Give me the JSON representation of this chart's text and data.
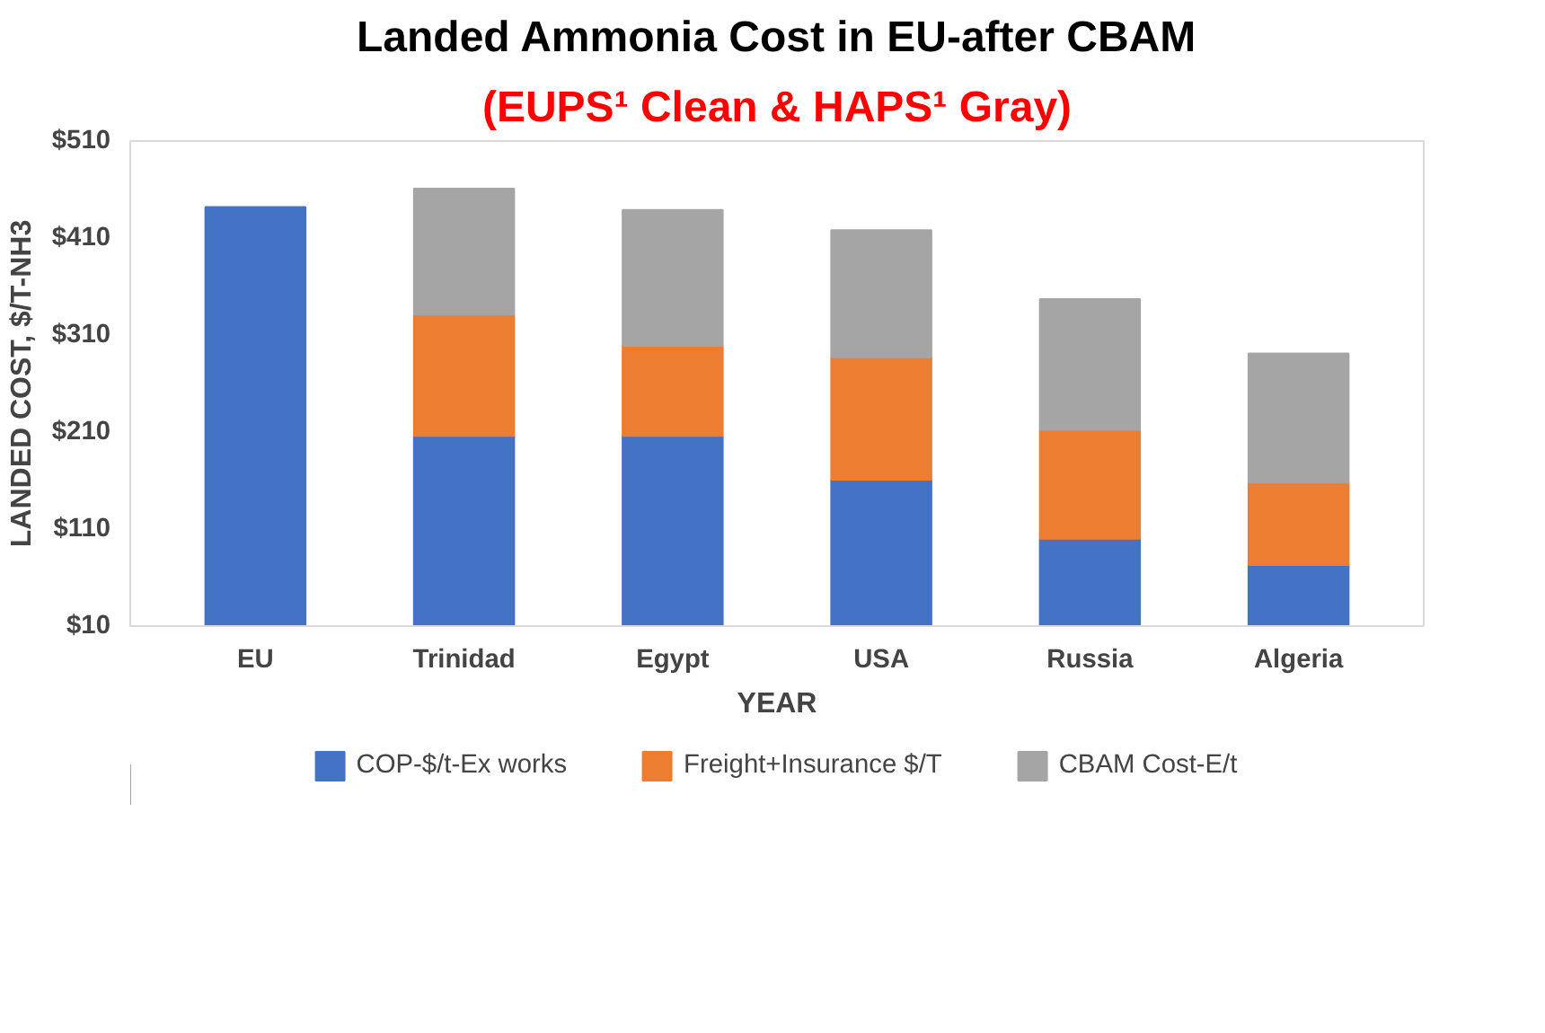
{
  "chart_data": {
    "type": "bar",
    "stacked": true,
    "title": "Landed Ammonia Cost in EU-after CBAM",
    "subtitle": "(EUPS¹ Clean & HAPS¹ Gray)",
    "xlabel": "YEAR",
    "ylabel": "LANDED COST, $/T-NH3",
    "categories": [
      "EU",
      "Trinidad",
      "Egypt",
      "USA",
      "Russia",
      "Algeria"
    ],
    "series": [
      {
        "name": "COP-$/t-Ex works",
        "color": "#4472c4",
        "values": [
          442,
          206,
          206,
          161,
          100,
          73
        ]
      },
      {
        "name": "Freight+Insurance $/T",
        "color": "#ed7d31",
        "values": [
          null,
          125,
          93,
          126,
          112,
          85
        ]
      },
      {
        "name": "CBAM Cost-E/t",
        "color": "#a5a5a5",
        "values": [
          null,
          130,
          140,
          131,
          135,
          133
        ]
      }
    ],
    "ylim": [
      10,
      510
    ],
    "yticks": [
      {
        "value": 10,
        "label": "$10"
      },
      {
        "value": 110,
        "label": "$110"
      },
      {
        "value": 210,
        "label": "$210"
      },
      {
        "value": 310,
        "label": "$310"
      },
      {
        "value": 410,
        "label": "$410"
      },
      {
        "value": 510,
        "label": "$510"
      }
    ],
    "grid": false,
    "legend": "bottom"
  }
}
